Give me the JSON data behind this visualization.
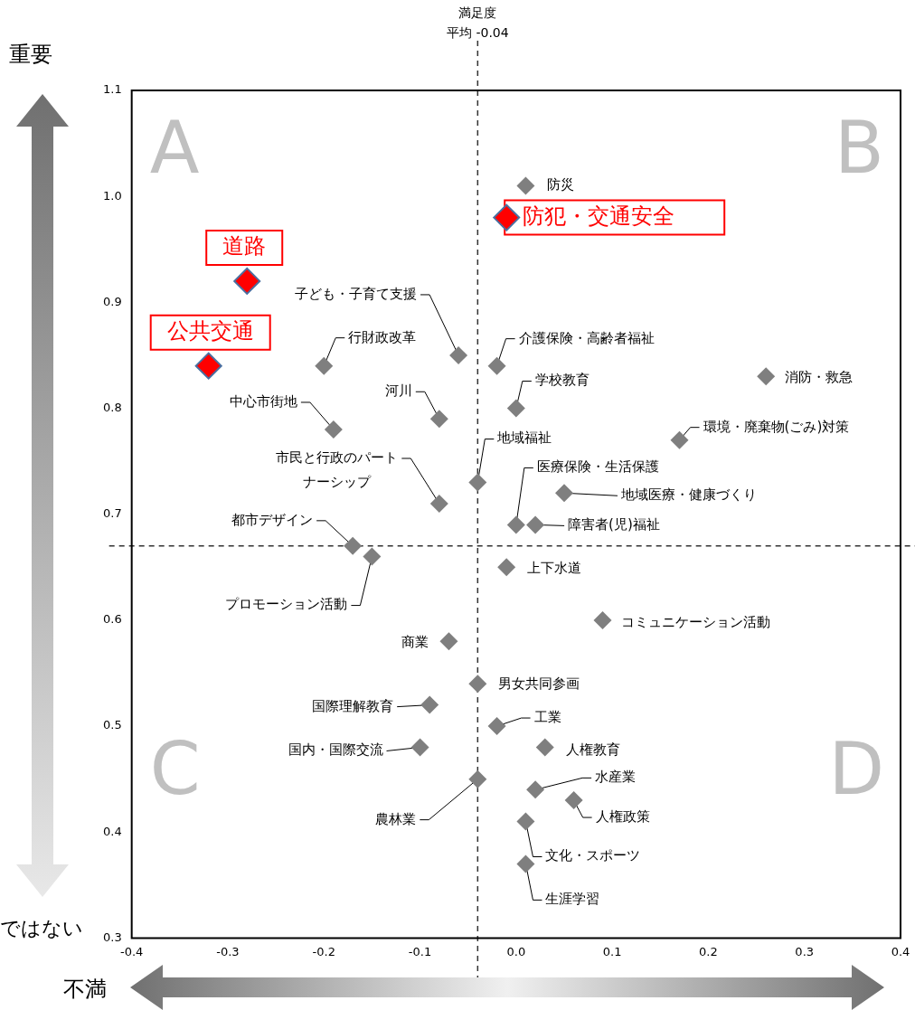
{
  "chart_data": {
    "type": "scatter",
    "xlabel": "満足度",
    "ylabel": "重要",
    "marker": "diamond",
    "xlim": [
      -0.4,
      0.4
    ],
    "ylim": [
      0.3,
      1.1
    ],
    "xticks": [
      -0.4,
      -0.3,
      -0.2,
      -0.1,
      {
        "value": 0,
        "label": "0.0"
      },
      0.1,
      0.2,
      0.3,
      0.4
    ],
    "yticks": [
      0.3,
      0.4,
      0.5,
      0.6,
      0.7,
      0.8,
      0.9,
      {
        "value": 1,
        "label": "1.0"
      },
      1.1
    ],
    "ref_lines": [
      {
        "axis": "x",
        "value": -0.04,
        "label": "平均 -0.04",
        "line_style": "dashed",
        "color": "#333333"
      },
      {
        "axis": "y",
        "value": 0.67,
        "label": null,
        "line_style": "dashed",
        "color": "#333333"
      }
    ],
    "annotations": [
      "ではない",
      "A",
      "B",
      "C",
      "D",
      "不満"
    ],
    "series": [
      {
        "name": "防災",
        "color": "#7f7f7f",
        "x": [
          0.01
        ],
        "values": [
          1.01
        ]
      },
      {
        "name": "防犯・交通安全",
        "color": "#ff0000",
        "x": [
          -0.01
        ],
        "values": [
          0.98
        ]
      },
      {
        "name": "道路",
        "color": "#ff0000",
        "x": [
          -0.28
        ],
        "values": [
          0.92
        ]
      },
      {
        "name": "公共交通",
        "color": "#ff0000",
        "x": [
          -0.32
        ],
        "values": [
          0.84
        ]
      },
      {
        "name": "子ども・子育て支援",
        "color": "#7f7f7f",
        "x": [
          -0.06
        ],
        "values": [
          0.85
        ]
      },
      {
        "name": "行財政改革",
        "color": "#7f7f7f",
        "x": [
          -0.2
        ],
        "values": [
          0.84
        ]
      },
      {
        "name": "介護保険・高齢者福祉",
        "color": "#7f7f7f",
        "x": [
          -0.02
        ],
        "values": [
          0.84
        ]
      },
      {
        "name": "消防・救急",
        "color": "#7f7f7f",
        "x": [
          0.26
        ],
        "values": [
          0.83
        ]
      },
      {
        "name": "学校教育",
        "color": "#7f7f7f",
        "x": [
          0.0
        ],
        "values": [
          0.8
        ]
      },
      {
        "name": "河川",
        "color": "#7f7f7f",
        "x": [
          -0.08
        ],
        "values": [
          0.79
        ]
      },
      {
        "name": "中心市街地",
        "color": "#7f7f7f",
        "x": [
          -0.19
        ],
        "values": [
          0.78
        ]
      },
      {
        "name": "環境・廃棄物(ごみ)対策",
        "color": "#7f7f7f",
        "x": [
          0.17
        ],
        "values": [
          0.77
        ]
      },
      {
        "name": "地域福祉",
        "color": "#7f7f7f",
        "x": [
          -0.04
        ],
        "values": [
          0.73
        ]
      },
      {
        "name": "医療保険・生活保護",
        "color": "#7f7f7f",
        "x": [
          0.0
        ],
        "values": [
          0.69
        ]
      },
      {
        "name": "地域医療・健康づくり",
        "color": "#7f7f7f",
        "x": [
          0.05
        ],
        "values": [
          0.72
        ]
      },
      {
        "name": "市民と行政のパートナーシップ",
        "color": "#7f7f7f",
        "x": [
          -0.08
        ],
        "values": [
          0.71
        ]
      },
      {
        "name": "障害者(児)福祉",
        "color": "#7f7f7f",
        "x": [
          0.02
        ],
        "values": [
          0.69
        ]
      },
      {
        "name": "都市デザイン",
        "color": "#7f7f7f",
        "x": [
          -0.17
        ],
        "values": [
          0.67
        ]
      },
      {
        "name": "プロモーション活動",
        "color": "#7f7f7f",
        "x": [
          -0.15
        ],
        "values": [
          0.66
        ]
      },
      {
        "name": "上下水道",
        "color": "#7f7f7f",
        "x": [
          -0.01
        ],
        "values": [
          0.65
        ]
      },
      {
        "name": "コミュニケーション活動",
        "color": "#7f7f7f",
        "x": [
          0.09
        ],
        "values": [
          0.6
        ]
      },
      {
        "name": "商業",
        "color": "#7f7f7f",
        "x": [
          -0.07
        ],
        "values": [
          0.58
        ]
      },
      {
        "name": "男女共同参画",
        "color": "#7f7f7f",
        "x": [
          -0.04
        ],
        "values": [
          0.54
        ]
      },
      {
        "name": "国際理解教育",
        "color": "#7f7f7f",
        "x": [
          -0.09
        ],
        "values": [
          0.52
        ]
      },
      {
        "name": "工業",
        "color": "#7f7f7f",
        "x": [
          -0.02
        ],
        "values": [
          0.5
        ]
      },
      {
        "name": "国内・国際交流",
        "color": "#7f7f7f",
        "x": [
          -0.1
        ],
        "values": [
          0.48
        ]
      },
      {
        "name": "人権教育",
        "color": "#7f7f7f",
        "x": [
          0.03
        ],
        "values": [
          0.48
        ]
      },
      {
        "name": "農林業",
        "color": "#7f7f7f",
        "x": [
          -0.04
        ],
        "values": [
          0.45
        ]
      },
      {
        "name": "水産業",
        "color": "#7f7f7f",
        "x": [
          0.02
        ],
        "values": [
          0.44
        ]
      },
      {
        "name": "人権政策",
        "color": "#7f7f7f",
        "x": [
          0.06
        ],
        "values": [
          0.43
        ]
      },
      {
        "name": "文化・スポーツ",
        "color": "#7f7f7f",
        "x": [
          0.01
        ],
        "values": [
          0.41
        ]
      },
      {
        "name": "生涯学習",
        "color": "#7f7f7f",
        "x": [
          0.01
        ],
        "values": [
          0.37
        ]
      }
    ]
  }
}
